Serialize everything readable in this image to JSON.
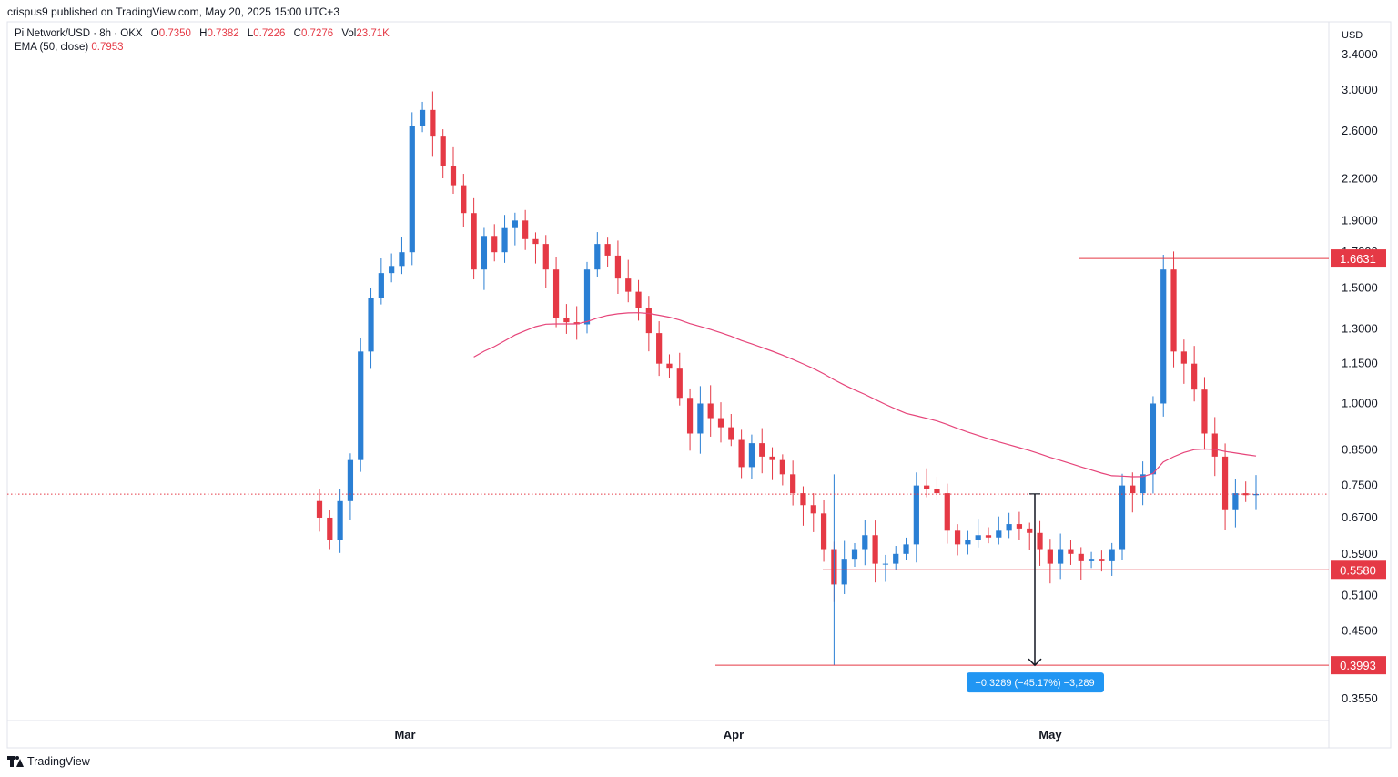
{
  "header": {
    "published": "crispus9 published on TradingView.com, May 20, 2025 15:00 UTC+3"
  },
  "legend": {
    "symbol": "Pi Network/USD · 8h · OKX",
    "o_label": "O",
    "o_value": "0.7350",
    "h_label": "H",
    "h_value": "0.7382",
    "l_label": "L",
    "l_value": "0.7226",
    "c_label": "C",
    "c_value": "0.7276",
    "vol_label": "Vol",
    "vol_value": "23.71K",
    "ema_label": "EMA (50, close)",
    "ema_value": "0.7953"
  },
  "footer": {
    "brand": "TradingView"
  },
  "colors": {
    "up": "#2a7fd4",
    "down": "#e53945",
    "ema": "#e6457a",
    "level": "#e53945",
    "measure_bg": "#2196f3",
    "axis_text": "#131722",
    "price_line": "#e53945"
  },
  "chart_data": {
    "type": "candlestick",
    "title": "Pi Network/USD · 8h · OKX",
    "currency": "USD",
    "scale": "log",
    "ylim": [
      0.33,
      3.7
    ],
    "y_ticks": [
      "3.4000",
      "3.0000",
      "2.6000",
      "2.2000",
      "1.9000",
      "1.7000",
      "1.5000",
      "1.3000",
      "1.1500",
      "1.0000",
      "0.8500",
      "0.7500",
      "0.6700",
      "0.5900",
      "0.5100",
      "0.4500",
      "0.3550"
    ],
    "x_ticks": [
      "Mar",
      "Apr",
      "May"
    ],
    "last_price": 0.7276,
    "levels": [
      {
        "label": "1.6631",
        "value": 1.6631
      },
      {
        "label": "0.5580",
        "value": 0.558
      },
      {
        "label": "0.3993",
        "value": 0.3993
      }
    ],
    "measure": {
      "from": 0.7282,
      "to": 0.3993,
      "label": "−0.3289 (−45.17%) −3,289"
    },
    "ema": {
      "name": "EMA (50, close)",
      "last": 0.7953
    },
    "candles_close": [
      0.67,
      0.62,
      0.71,
      0.82,
      1.2,
      1.45,
      1.58,
      1.62,
      1.7,
      2.65,
      2.8,
      2.55,
      2.3,
      2.15,
      1.95,
      1.6,
      1.8,
      1.7,
      1.85,
      1.9,
      1.78,
      1.75,
      1.6,
      1.35,
      1.33,
      1.32,
      1.6,
      1.75,
      1.68,
      1.55,
      1.48,
      1.4,
      1.28,
      1.15,
      1.13,
      1.02,
      0.9,
      1.0,
      0.95,
      0.92,
      0.88,
      0.8,
      0.87,
      0.83,
      0.82,
      0.78,
      0.73,
      0.7,
      0.68,
      0.6,
      0.53,
      0.58,
      0.6,
      0.63,
      0.57,
      0.57,
      0.59,
      0.61,
      0.75,
      0.74,
      0.73,
      0.64,
      0.61,
      0.62,
      0.63,
      0.625,
      0.64,
      0.655,
      0.645,
      0.635,
      0.6,
      0.57,
      0.6,
      0.59,
      0.575,
      0.58,
      0.575,
      0.6,
      0.75,
      0.73,
      0.78,
      1.0,
      1.6,
      1.2,
      1.15,
      1.05,
      0.9,
      0.83,
      0.69,
      0.73,
      0.725,
      0.728
    ]
  }
}
